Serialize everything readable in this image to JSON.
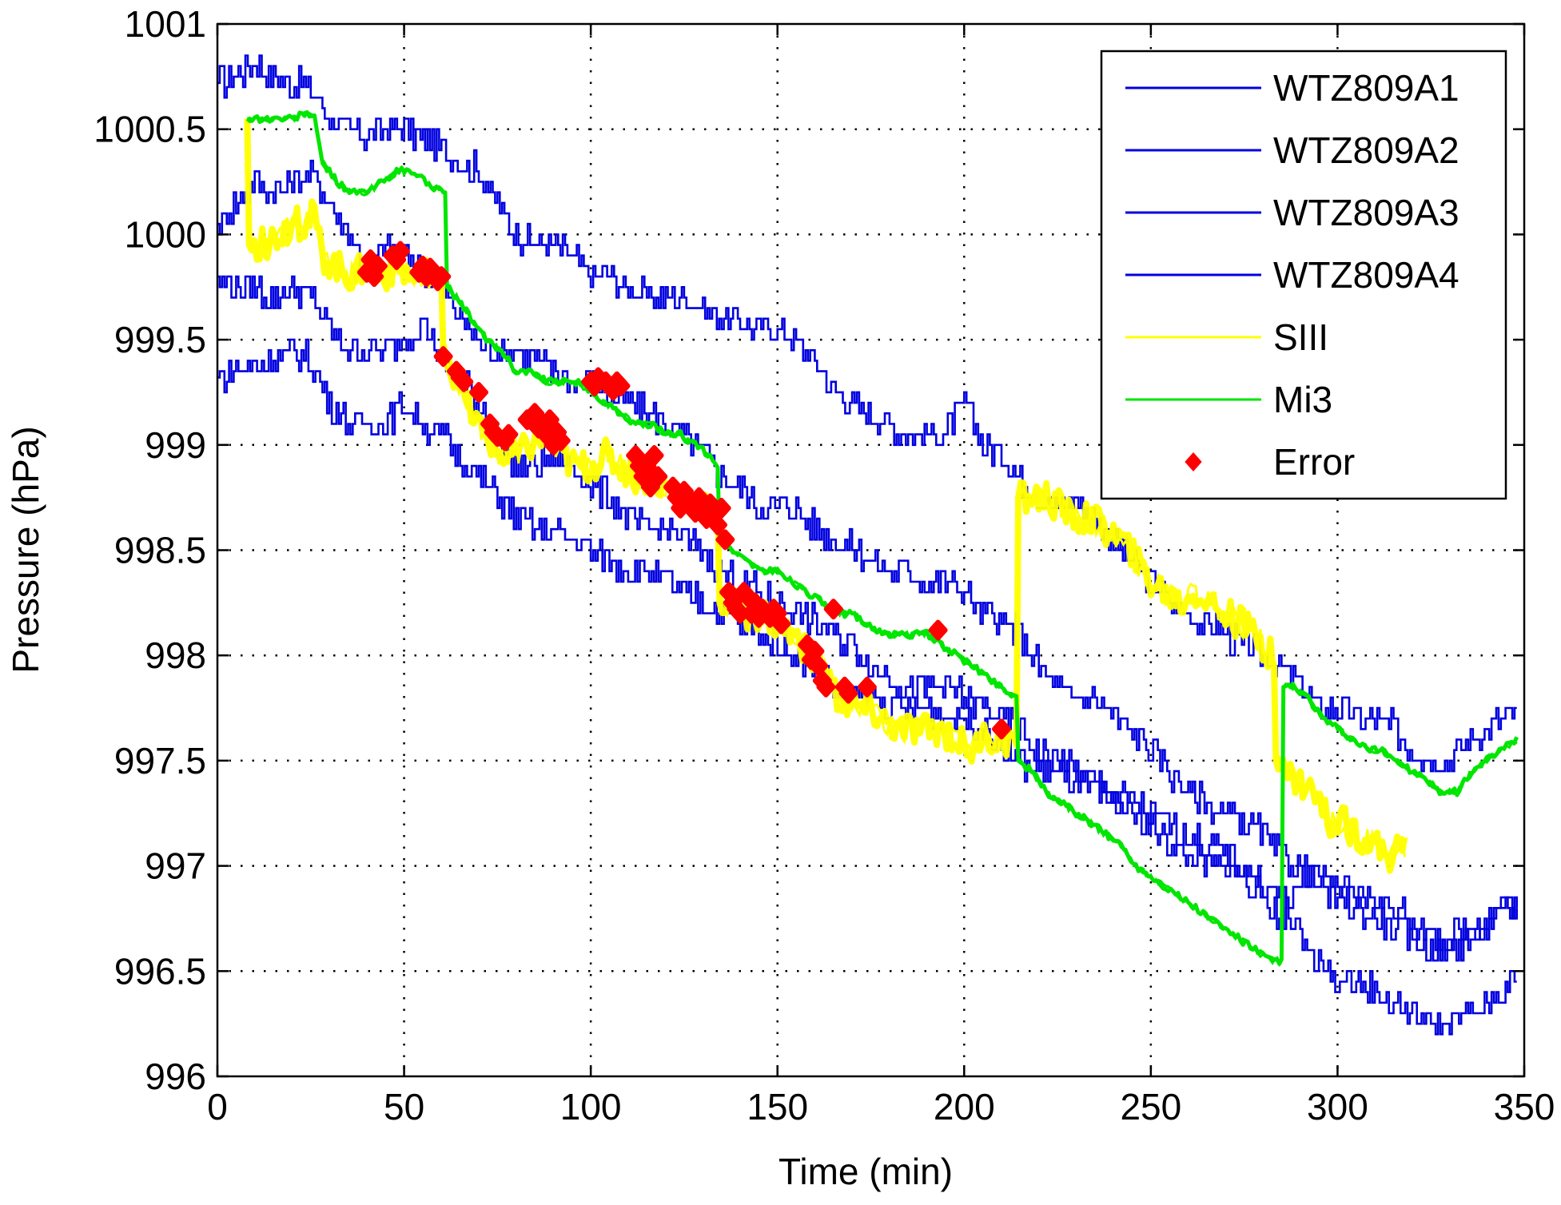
{
  "chart_data": {
    "type": "line",
    "title": "",
    "xlabel": "Time (min)",
    "ylabel": "Pressure (hPa)",
    "xlim": [
      0,
      350
    ],
    "ylim": [
      996,
      1001
    ],
    "grid": true,
    "legend_location": "top-right",
    "xticks": [
      0,
      50,
      100,
      150,
      200,
      250,
      300,
      350
    ],
    "xtick_labels": [
      "0",
      "50",
      "100",
      "150",
      "200",
      "250",
      "300",
      "350"
    ],
    "yticks": [
      996,
      996.5,
      997,
      997.5,
      998,
      998.5,
      999,
      999.5,
      1000,
      1000.5,
      1001
    ],
    "ytick_labels": [
      "996",
      "996.5",
      "997",
      "997.5",
      "998",
      "998.5",
      "999",
      "999.5",
      "1000",
      "1000.5",
      "1001"
    ],
    "colors": {
      "wtz": "#0000e0",
      "siii": "#ffff00",
      "mi3": "#00e600",
      "error": "#ff0000",
      "grid": "#000000"
    },
    "series": [
      {
        "name": "WTZ809A1",
        "color": "#0000e0",
        "x": [
          0,
          5,
          10,
          15,
          20,
          25,
          30,
          35,
          40,
          45,
          50,
          55,
          60,
          65,
          70,
          75,
          80,
          85,
          90,
          95,
          100,
          105,
          110,
          115,
          120,
          125,
          130,
          135,
          140,
          145,
          150,
          155,
          160,
          165,
          170,
          175,
          180,
          185,
          190,
          195,
          200,
          205,
          210,
          215,
          220,
          225,
          230,
          235,
          240,
          245,
          250,
          255,
          260,
          265,
          270,
          275,
          280,
          285,
          290,
          295,
          300,
          305,
          310,
          315,
          320,
          325,
          330,
          335,
          340,
          345,
          348
        ],
        "y": [
          1000.72,
          1000.75,
          1000.82,
          1000.75,
          1000.72,
          1000.7,
          1000.55,
          1000.5,
          1000.45,
          1000.5,
          1000.5,
          1000.45,
          1000.4,
          1000.35,
          1000.3,
          1000.15,
          1000.0,
          999.95,
          999.95,
          999.9,
          999.8,
          999.8,
          999.75,
          999.7,
          999.7,
          999.7,
          999.65,
          999.6,
          999.6,
          999.55,
          999.55,
          999.5,
          999.4,
          999.25,
          999.2,
          999.15,
          999.1,
          999.05,
          999.05,
          999.05,
          999.2,
          999.0,
          998.95,
          998.85,
          998.75,
          998.7,
          998.75,
          998.65,
          998.55,
          998.45,
          998.35,
          998.25,
          998.2,
          998.15,
          998.1,
          998.05,
          998.0,
          997.95,
          997.85,
          997.75,
          997.75,
          997.7,
          997.7,
          997.65,
          997.55,
          997.5,
          997.5,
          997.6,
          997.65,
          997.72,
          997.72
        ]
      },
      {
        "name": "WTZ809A2",
        "color": "#0000e0",
        "x": [
          0,
          5,
          10,
          15,
          20,
          25,
          30,
          35,
          40,
          45,
          50,
          55,
          60,
          65,
          70,
          75,
          80,
          85,
          90,
          95,
          100,
          105,
          110,
          115,
          120,
          125,
          130,
          135,
          140,
          145,
          150,
          155,
          160,
          165,
          170,
          175,
          180,
          185,
          190,
          195,
          200,
          205,
          210,
          215,
          220,
          225,
          230,
          235,
          240,
          245,
          250,
          255,
          260,
          265,
          270,
          275,
          280,
          285,
          290,
          295,
          300,
          305,
          310,
          315,
          320,
          325,
          330,
          335,
          340,
          345,
          348
        ],
        "y": [
          1000.05,
          1000.15,
          1000.25,
          1000.2,
          1000.25,
          1000.3,
          1000.15,
          1000.0,
          999.85,
          999.95,
          999.9,
          999.85,
          999.75,
          999.6,
          999.5,
          999.45,
          999.45,
          999.4,
          999.35,
          999.3,
          999.3,
          999.25,
          999.2,
          999.15,
          999.1,
          999.05,
          998.95,
          998.85,
          998.8,
          998.7,
          998.7,
          998.7,
          998.6,
          998.55,
          998.5,
          998.45,
          998.4,
          998.4,
          998.35,
          998.35,
          998.3,
          998.2,
          998.15,
          998.1,
          997.95,
          997.85,
          997.8,
          997.8,
          997.7,
          997.65,
          997.55,
          997.45,
          997.35,
          997.3,
          997.25,
          997.2,
          997.15,
          997.05,
          997.0,
          996.9,
          996.85,
          996.8,
          996.75,
          996.7,
          996.65,
          996.6,
          996.6,
          996.65,
          996.7,
          996.8,
          996.8
        ]
      },
      {
        "name": "WTZ809A3",
        "color": "#0000e0",
        "x": [
          0,
          5,
          10,
          15,
          20,
          25,
          30,
          35,
          40,
          45,
          50,
          55,
          60,
          65,
          70,
          75,
          80,
          85,
          90,
          95,
          100,
          105,
          110,
          115,
          120,
          125,
          130,
          135,
          140,
          145,
          150,
          155,
          160,
          165,
          170,
          175,
          180,
          185,
          190,
          195,
          200,
          205,
          210,
          215,
          220,
          225,
          230,
          235,
          240,
          245,
          250,
          255,
          260,
          265,
          270,
          275,
          280,
          285,
          290,
          295,
          300,
          305,
          310,
          315,
          320,
          325,
          330,
          335,
          340,
          345,
          348
        ],
        "y": [
          999.8,
          999.75,
          999.75,
          999.7,
          999.75,
          999.7,
          999.55,
          999.45,
          999.45,
          999.45,
          999.5,
          999.6,
          999.4,
          999.3,
          999.2,
          999.05,
          998.9,
          998.9,
          998.95,
          998.9,
          998.8,
          998.75,
          998.65,
          998.6,
          998.6,
          998.55,
          998.5,
          998.4,
          998.35,
          998.3,
          998.25,
          998.2,
          998.15,
          998.1,
          998.05,
          997.95,
          997.9,
          997.85,
          997.85,
          997.85,
          997.8,
          997.75,
          997.7,
          997.65,
          997.55,
          997.5,
          997.45,
          997.4,
          997.35,
          997.3,
          997.25,
          997.2,
          997.15,
          997.1,
          997.05,
          997.0,
          996.9,
          996.85,
          996.65,
          996.55,
          996.45,
          996.45,
          996.4,
          996.35,
          996.3,
          996.25,
          996.25,
          996.3,
          996.35,
          996.42,
          996.45
        ]
      },
      {
        "name": "WTZ809A4",
        "color": "#0000e0",
        "x": [
          0,
          5,
          10,
          15,
          20,
          25,
          30,
          35,
          40,
          45,
          50,
          55,
          60,
          65,
          70,
          75,
          80,
          85,
          90,
          95,
          100,
          105,
          110,
          115,
          120,
          125,
          130,
          135,
          140,
          145,
          150,
          155,
          160,
          165,
          170,
          175,
          180,
          185,
          190,
          195,
          200,
          205,
          210,
          215,
          220,
          225,
          230,
          235,
          240,
          245,
          250,
          255,
          260,
          265,
          270,
          275,
          280,
          285,
          290,
          295,
          300,
          305,
          310,
          315,
          320,
          325,
          330,
          335,
          340,
          345,
          348
        ],
        "y": [
          999.32,
          999.35,
          999.38,
          999.4,
          999.45,
          999.4,
          999.2,
          999.1,
          999.1,
          999.1,
          999.2,
          999.1,
          999.05,
          998.95,
          998.85,
          998.75,
          998.65,
          998.6,
          998.6,
          998.55,
          998.5,
          998.45,
          998.4,
          998.4,
          998.35,
          998.3,
          998.25,
          998.2,
          998.15,
          998.1,
          998.05,
          998.0,
          997.95,
          997.85,
          997.8,
          997.8,
          997.75,
          997.75,
          997.75,
          997.7,
          997.7,
          997.65,
          997.55,
          997.5,
          997.45,
          997.45,
          997.4,
          997.35,
          997.3,
          997.25,
          997.2,
          997.1,
          997.05,
          997.0,
          997.0,
          996.95,
          996.85,
          996.75,
          996.95,
          996.95,
          996.9,
          996.85,
          996.85,
          996.8,
          996.75,
          996.65,
          996.65,
          996.7,
          996.75,
          996.82,
          996.82
        ]
      },
      {
        "name": "SIII",
        "color": "#ffff00",
        "x": [
          8,
          8.5,
          12,
          16,
          20,
          24,
          26,
          28,
          32,
          36,
          40,
          44,
          48,
          52,
          56,
          60,
          60.5,
          64,
          68,
          72,
          76,
          80,
          84,
          88,
          92,
          96,
          100,
          104,
          108,
          112,
          116,
          120,
          124,
          128,
          132,
          134,
          134.5,
          138,
          142,
          146,
          150,
          154,
          158,
          162,
          166,
          170,
          174,
          178,
          182,
          186,
          190,
          194,
          198,
          202,
          206,
          210,
          214,
          214.5,
          218,
          222,
          226,
          230,
          234,
          238,
          242,
          246,
          250,
          254,
          258,
          262,
          266,
          270,
          274,
          278,
          282,
          283,
          283.5,
          286,
          290,
          294,
          298,
          302,
          306,
          310,
          314,
          318
        ],
        "y": [
          1000.55,
          999.95,
          999.95,
          1000.0,
          1000.05,
          1000.05,
          1000.1,
          999.9,
          999.85,
          999.8,
          999.85,
          999.8,
          999.85,
          999.8,
          999.8,
          999.75,
          999.45,
          999.3,
          999.15,
          999.05,
          998.95,
          998.95,
          999.0,
          999.05,
          998.95,
          998.9,
          998.9,
          998.95,
          998.9,
          998.85,
          998.85,
          998.8,
          998.75,
          998.75,
          998.7,
          998.65,
          998.25,
          998.25,
          998.2,
          998.2,
          998.15,
          998.1,
          998.0,
          997.95,
          997.8,
          997.75,
          997.75,
          997.7,
          997.65,
          997.65,
          997.65,
          997.65,
          997.6,
          997.55,
          997.6,
          997.6,
          997.6,
          998.75,
          998.75,
          998.75,
          998.7,
          998.65,
          998.65,
          998.6,
          998.55,
          998.45,
          998.35,
          998.3,
          998.25,
          998.3,
          998.25,
          998.2,
          998.15,
          998.1,
          998.0,
          997.95,
          997.5,
          997.45,
          997.4,
          997.35,
          997.2,
          997.2,
          997.15,
          997.1,
          997.05,
          997.1
        ]
      },
      {
        "name": "Mi3",
        "color": "#00e600",
        "x": [
          8,
          12,
          16,
          20,
          24,
          26,
          28,
          32,
          36,
          40,
          44,
          48,
          52,
          56,
          60,
          61,
          61.5,
          64,
          68,
          72,
          76,
          80,
          84,
          88,
          92,
          96,
          100,
          104,
          108,
          112,
          116,
          120,
          124,
          128,
          132,
          134,
          134.5,
          138,
          142,
          146,
          150,
          154,
          158,
          162,
          166,
          170,
          174,
          178,
          182,
          186,
          190,
          194,
          198,
          202,
          206,
          210,
          214,
          214.5,
          218,
          222,
          226,
          230,
          234,
          238,
          242,
          246,
          250,
          254,
          258,
          262,
          266,
          270,
          274,
          278,
          282,
          285,
          285.5,
          288,
          292,
          296,
          300,
          304,
          308,
          312,
          316,
          320,
          324,
          328,
          330,
          332,
          336,
          340,
          344,
          348
        ],
        "y": [
          1000.55,
          1000.55,
          1000.55,
          1000.55,
          1000.58,
          1000.55,
          1000.35,
          1000.25,
          1000.2,
          1000.2,
          1000.25,
          1000.3,
          1000.3,
          1000.25,
          1000.2,
          1000.2,
          999.75,
          999.7,
          999.6,
          999.5,
          999.45,
          999.35,
          999.35,
          999.3,
          999.3,
          999.3,
          999.25,
          999.2,
          999.15,
          999.1,
          999.1,
          999.05,
          999.05,
          999.0,
          998.95,
          998.9,
          998.55,
          998.5,
          998.45,
          998.4,
          998.4,
          998.35,
          998.3,
          998.25,
          998.2,
          998.2,
          998.15,
          998.1,
          998.1,
          998.1,
          998.1,
          998.05,
          998.0,
          997.95,
          997.9,
          997.85,
          997.8,
          997.5,
          997.45,
          997.35,
          997.3,
          997.25,
          997.2,
          997.15,
          997.1,
          997.0,
          996.95,
          996.9,
          996.85,
          996.8,
          996.75,
          996.7,
          996.65,
          996.6,
          996.55,
          996.55,
          997.85,
          997.85,
          997.8,
          997.7,
          997.65,
          997.6,
          997.55,
          997.55,
          997.5,
          997.45,
          997.4,
          997.35,
          997.35,
          997.35,
          997.45,
          997.5,
          997.55,
          997.6
        ]
      }
    ],
    "error_points": {
      "name": "Error",
      "color": "#ff0000",
      "x": [
        40,
        41,
        42,
        43,
        47,
        48,
        49,
        54,
        55,
        56,
        57,
        58,
        59,
        60,
        60.5,
        64,
        65,
        66,
        70,
        73,
        74,
        75,
        77,
        78,
        83,
        85,
        86,
        87,
        88,
        89,
        90,
        91,
        92,
        100,
        101,
        102,
        104,
        105,
        106,
        107,
        108,
        112,
        113,
        114,
        115,
        116,
        117,
        118,
        122,
        123,
        124,
        125,
        126,
        127,
        128,
        129,
        130,
        131,
        132,
        133,
        134,
        135,
        136,
        137,
        138,
        139,
        140,
        141,
        142,
        143,
        144,
        145,
        146,
        147,
        148,
        149,
        150,
        151,
        158,
        159,
        160,
        161,
        162,
        163,
        165,
        168,
        169,
        174,
        193,
        210
      ],
      "y": [
        999.82,
        999.88,
        999.8,
        999.85,
        999.9,
        999.88,
        999.92,
        999.82,
        999.85,
        999.8,
        999.84,
        999.8,
        999.78,
        999.8,
        999.42,
        999.35,
        999.32,
        999.3,
        999.25,
        999.1,
        999.06,
        999.04,
        999.02,
        999.05,
        999.12,
        999.15,
        999.08,
        999.1,
        999.05,
        999.12,
        999.0,
        999.06,
        999.02,
        999.3,
        999.28,
        999.32,
        999.3,
        999.28,
        999.26,
        999.3,
        999.28,
        998.95,
        998.9,
        998.85,
        998.9,
        998.8,
        998.95,
        998.85,
        998.8,
        998.75,
        998.7,
        998.78,
        998.72,
        998.7,
        998.68,
        998.75,
        998.7,
        998.65,
        998.72,
        998.68,
        998.62,
        998.7,
        998.55,
        998.3,
        998.25,
        998.22,
        998.2,
        998.3,
        998.28,
        998.2,
        998.25,
        998.18,
        998.22,
        998.2,
        998.18,
        998.22,
        998.2,
        998.15,
        998.05,
        997.98,
        998.02,
        997.95,
        997.88,
        997.85,
        998.22,
        997.85,
        997.82,
        997.85,
        998.12,
        997.65
      ]
    },
    "legend": [
      "WTZ809A1",
      "WTZ809A2",
      "WTZ809A3",
      "WTZ809A4",
      "SIII",
      "Mi3",
      "Error"
    ]
  }
}
